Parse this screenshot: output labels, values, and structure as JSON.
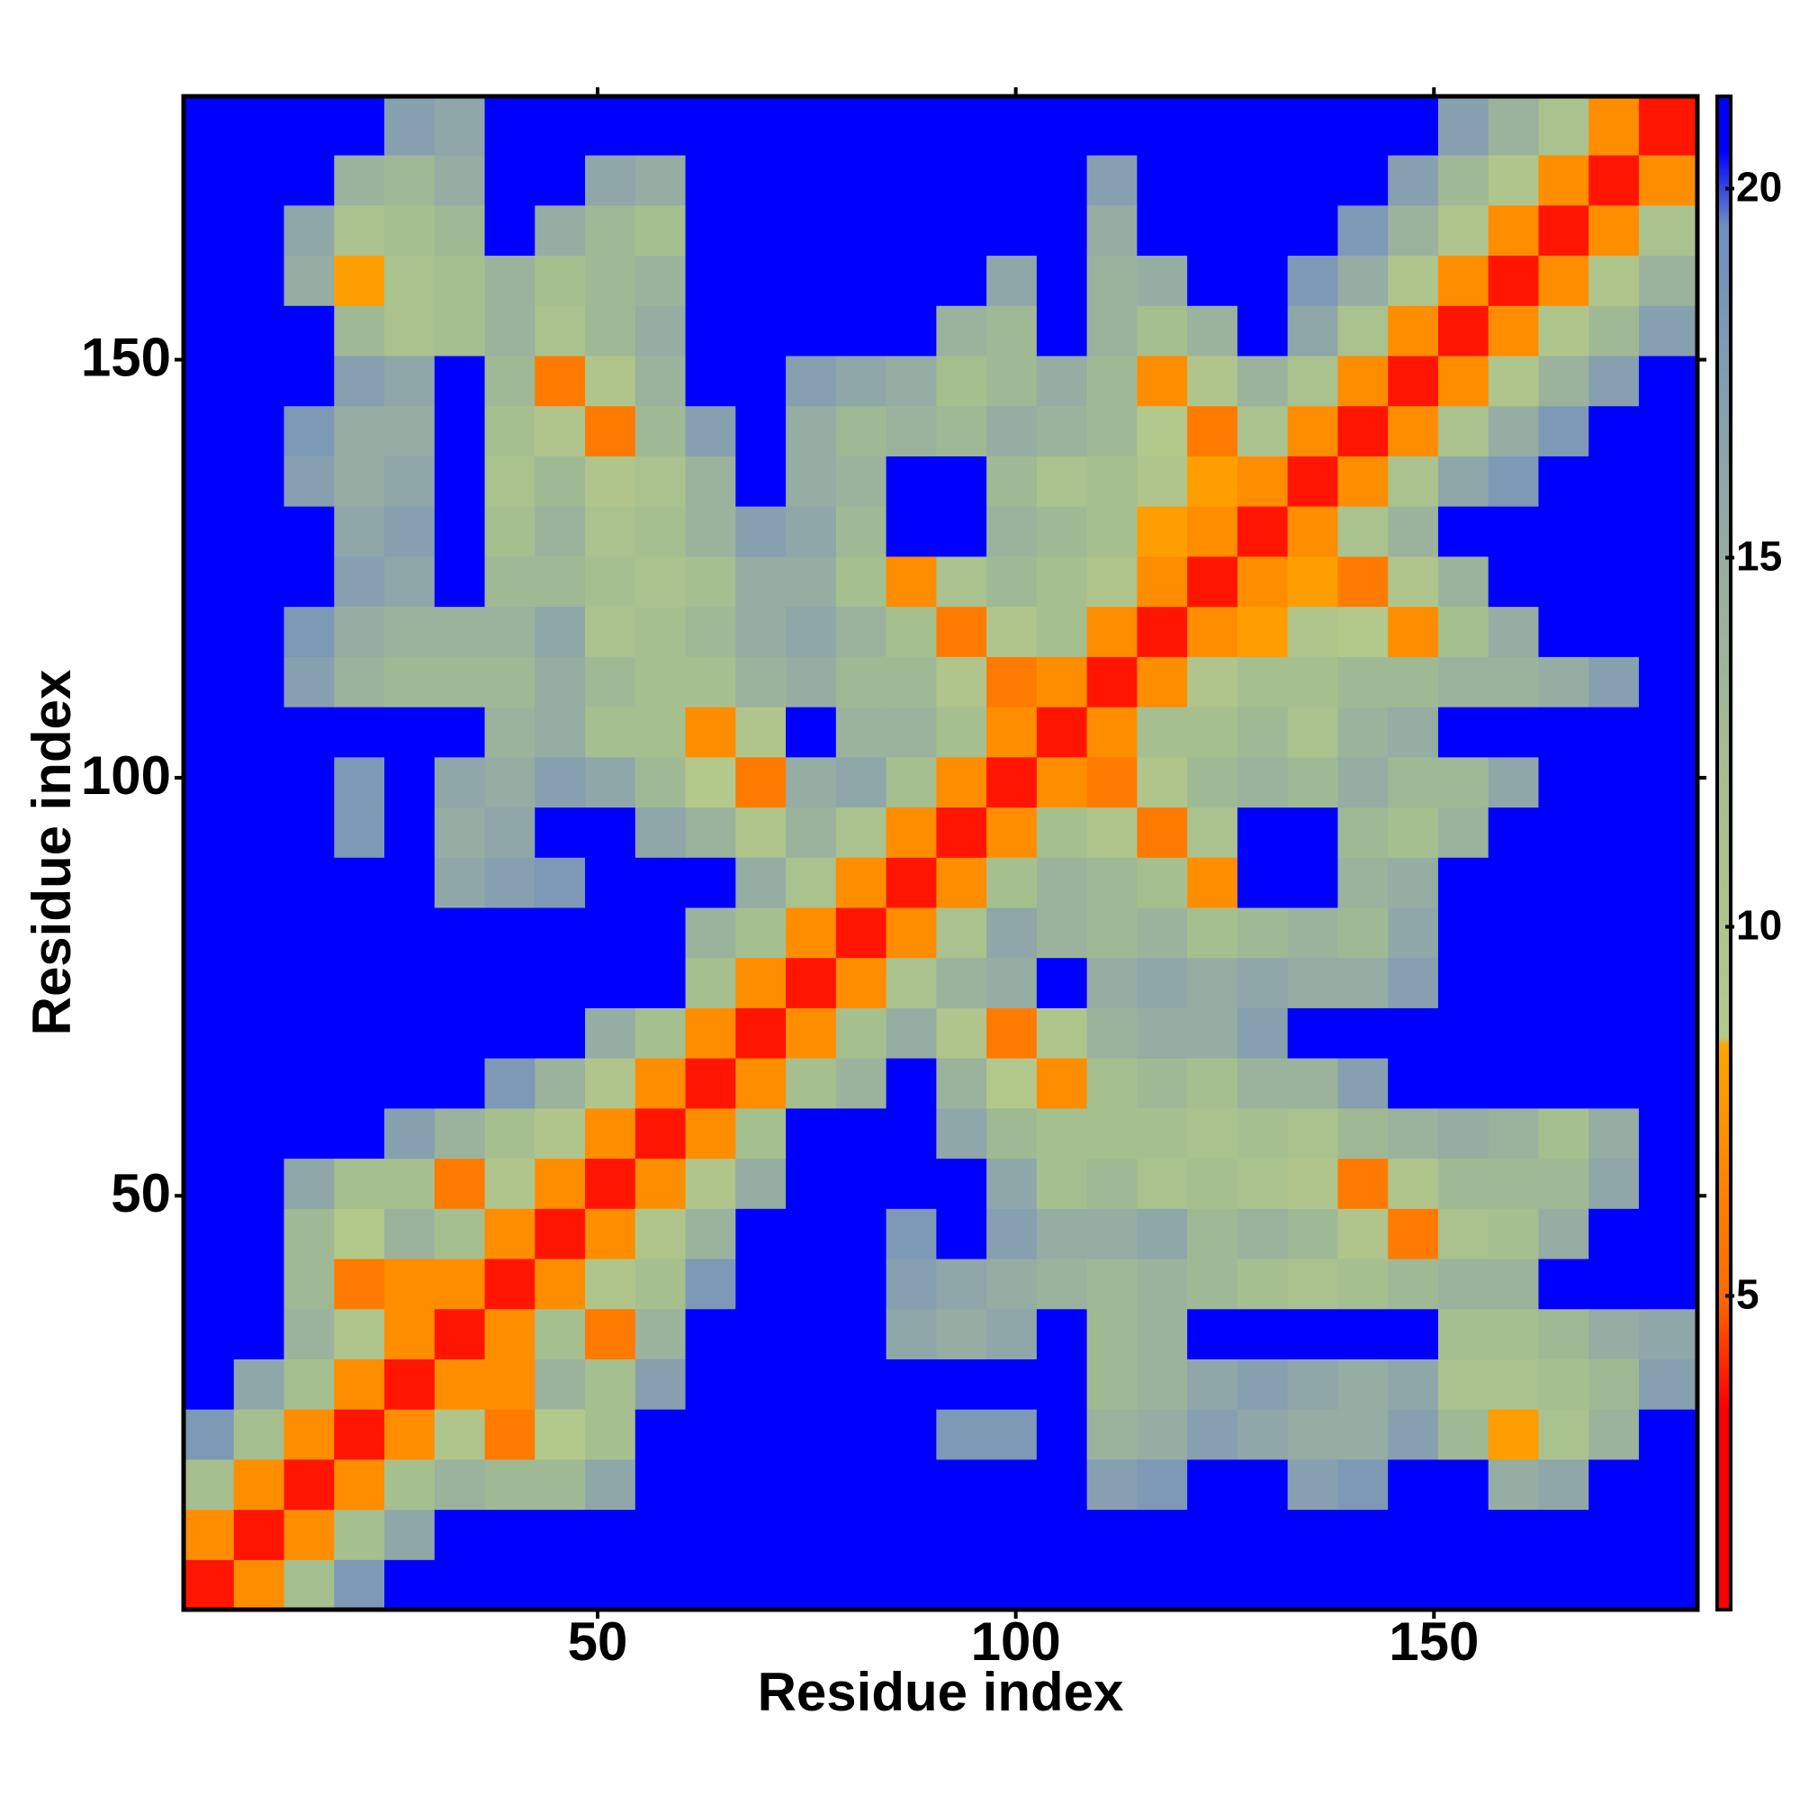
{
  "chart_data": {
    "type": "heatmap",
    "xlabel": "Residue index",
    "ylabel": "Residue index",
    "xlim": [
      0.5,
      181.5
    ],
    "ylim": [
      0.5,
      181.5
    ],
    "xticks": [
      50,
      100,
      150
    ],
    "yticks": [
      50,
      100,
      150
    ],
    "bins": [
      0.5,
      6.5,
      12.5,
      18.5,
      24.5,
      30.5,
      36.5,
      42.5,
      48.5,
      54.5,
      60.5,
      66.5,
      72.5,
      78.5,
      84.5,
      90.5,
      96.5,
      102.5,
      108.5,
      114.5,
      120.5,
      126.5,
      132.5,
      138.5,
      144.5,
      150.5,
      156.5,
      162.5,
      168.5,
      174.5,
      181.5
    ],
    "symmetric": true,
    "z": [
      [
        3.8
      ],
      [
        7,
        3.8
      ],
      [
        12,
        7,
        3.8
      ],
      [
        18,
        12,
        7,
        3.8
      ],
      [
        21,
        16,
        12,
        7,
        3.8
      ],
      [
        21,
        21,
        14,
        10,
        7,
        3.8
      ],
      [
        21,
        21,
        13,
        6,
        7,
        7,
        3.8
      ],
      [
        21,
        21,
        13,
        9,
        14,
        12,
        7,
        3.8
      ],
      [
        21,
        21,
        16,
        12,
        12,
        6,
        10,
        7,
        3.8
      ],
      [
        21,
        21,
        21,
        21,
        17,
        14,
        12,
        10,
        7,
        3.8
      ],
      [
        21,
        21,
        21,
        21,
        21,
        21,
        18,
        14,
        10,
        7,
        3.8
      ],
      [
        21,
        21,
        21,
        21,
        21,
        21,
        21,
        21,
        15,
        12,
        7,
        3.8
      ],
      [
        21,
        21,
        21,
        21,
        21,
        21,
        21,
        21,
        21,
        21,
        12,
        7,
        3.8
      ],
      [
        21,
        21,
        21,
        21,
        21,
        21,
        21,
        21,
        21,
        21,
        14,
        12,
        7,
        3.8
      ],
      [
        21,
        21,
        21,
        21,
        21,
        16,
        17,
        18,
        21,
        21,
        21,
        15,
        11,
        7,
        3.8
      ],
      [
        21,
        21,
        21,
        18,
        21,
        15,
        16,
        21,
        21,
        16,
        14,
        10,
        14,
        11,
        7,
        3.8
      ],
      [
        21,
        21,
        21,
        18,
        21,
        16,
        15,
        17,
        16,
        13,
        9,
        6,
        15,
        16,
        12,
        7,
        3.8
      ],
      [
        21,
        21,
        21,
        21,
        21,
        21,
        14,
        15,
        12,
        12,
        7,
        10,
        21,
        14,
        14,
        12,
        7,
        3.8
      ],
      [
        21,
        21,
        17,
        14,
        13,
        13,
        13,
        15,
        13,
        12,
        12,
        14,
        15,
        13,
        13,
        10,
        6,
        7,
        3.8
      ],
      [
        21,
        21,
        18,
        15,
        14,
        14,
        14,
        16,
        11,
        12,
        13,
        15,
        16,
        14,
        12,
        6,
        10,
        12,
        7,
        3.8
      ],
      [
        21,
        21,
        21,
        17,
        16,
        21,
        13,
        13,
        12,
        11,
        12,
        15,
        15,
        12,
        7,
        11,
        13,
        12,
        10,
        7,
        3.8
      ],
      [
        21,
        21,
        21,
        16,
        17,
        21,
        12,
        14,
        11,
        12,
        14,
        17,
        16,
        13,
        21,
        21,
        14,
        13,
        12,
        8,
        7,
        3.8
      ],
      [
        21,
        21,
        17,
        15,
        16,
        21,
        11,
        13,
        10,
        11,
        14,
        21,
        15,
        14,
        21,
        21,
        13,
        11,
        12,
        10,
        8,
        7,
        3.8
      ],
      [
        21,
        21,
        18,
        15,
        15,
        21,
        12,
        10,
        6,
        13,
        17,
        21,
        15,
        13,
        14,
        13,
        15,
        14,
        13,
        9,
        6,
        11,
        7,
        3.8
      ],
      [
        21,
        21,
        21,
        17,
        16,
        21,
        13,
        6,
        10,
        14,
        21,
        21,
        17,
        16,
        15,
        12,
        13,
        15,
        13,
        7,
        10,
        14,
        11,
        7,
        3.8
      ],
      [
        21,
        21,
        21,
        13,
        11,
        12,
        14,
        11,
        13,
        15,
        21,
        21,
        21,
        21,
        21,
        14,
        13,
        21,
        14,
        12,
        14,
        21,
        16,
        11,
        7,
        3.8
      ],
      [
        21,
        21,
        15,
        8,
        11,
        12,
        14,
        12,
        13,
        14,
        21,
        21,
        21,
        21,
        21,
        21,
        16,
        21,
        14,
        15,
        21,
        21,
        18,
        15,
        10,
        7,
        3.8
      ],
      [
        21,
        21,
        16,
        11,
        12,
        13,
        21,
        15,
        13,
        12,
        21,
        21,
        21,
        21,
        21,
        21,
        21,
        21,
        15,
        21,
        21,
        21,
        21,
        18,
        14,
        10,
        7,
        3.8
      ],
      [
        21,
        21,
        21,
        14,
        13,
        15,
        21,
        21,
        16,
        15,
        21,
        21,
        21,
        21,
        21,
        21,
        21,
        21,
        17,
        21,
        21,
        21,
        21,
        21,
        17,
        13,
        10,
        7,
        3.8
      ],
      [
        21,
        21,
        21,
        21,
        17,
        16,
        21,
        21,
        21,
        21,
        21,
        21,
        21,
        21,
        21,
        21,
        21,
        21,
        21,
        21,
        21,
        21,
        21,
        21,
        21,
        17,
        14,
        11,
        7,
        3.8
      ]
    ],
    "colorbar": {
      "zlim": [
        0.75,
        21.25
      ],
      "zticks": [
        5,
        10,
        15,
        20
      ],
      "stops": [
        [
          0.75,
          "#ff0000"
        ],
        [
          3.5,
          "#ff0000"
        ],
        [
          5,
          "#ff6a00"
        ],
        [
          8.4,
          "#ffa500"
        ],
        [
          8.5,
          "#b5c98a"
        ],
        [
          12,
          "#a6bf8f"
        ],
        [
          16,
          "#8fa7a8"
        ],
        [
          19.5,
          "#6f8fbf"
        ],
        [
          20.5,
          "#0000ff"
        ],
        [
          21.25,
          "#0000ff"
        ]
      ]
    }
  }
}
